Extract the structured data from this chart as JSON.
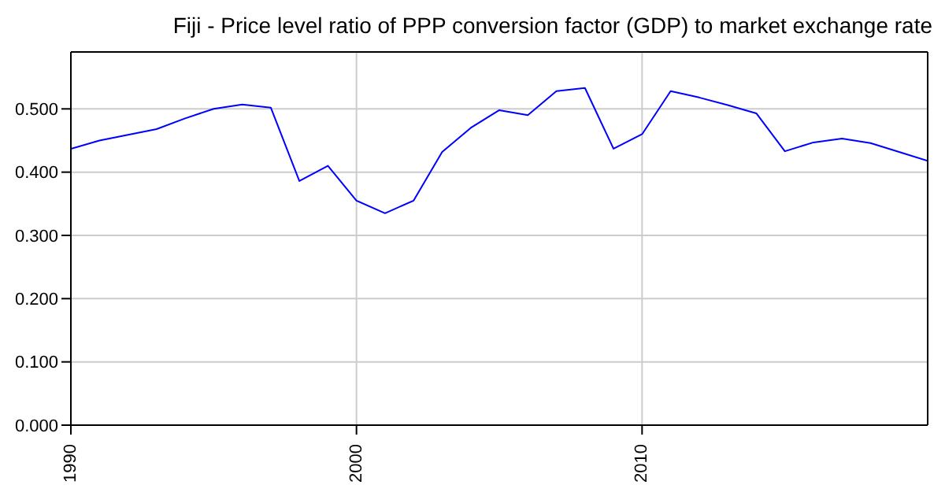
{
  "chart_data": {
    "type": "line",
    "title": "Fiji - Price level ratio of PPP conversion factor (GDP) to market exchange rate",
    "x": [
      1990,
      1991,
      1992,
      1993,
      1994,
      1995,
      1996,
      1997,
      1998,
      1999,
      2000,
      2001,
      2002,
      2003,
      2004,
      2005,
      2006,
      2007,
      2008,
      2009,
      2010,
      2011,
      2012,
      2013,
      2014,
      2015,
      2016,
      2017,
      2018,
      2019,
      2020
    ],
    "series": [
      {
        "color": "#0000ff",
        "values": [
          0.437,
          0.45,
          0.459,
          0.468,
          0.485,
          0.5,
          0.507,
          0.502,
          0.386,
          0.41,
          0.355,
          0.335,
          0.355,
          0.432,
          0.47,
          0.498,
          0.49,
          0.528,
          0.533,
          0.437,
          0.46,
          0.528,
          0.518,
          0.506,
          0.493,
          0.433,
          0.447,
          0.453,
          0.446,
          0.432,
          0.418
        ]
      }
    ],
    "xlim": [
      1990,
      2020
    ],
    "xticks": [
      1990,
      2000,
      2010
    ],
    "ylim": [
      0,
      0.59
    ],
    "yticks": [
      {
        "value": 0,
        "label": "0.000"
      },
      {
        "value": 0.1,
        "label": "0.100"
      },
      {
        "value": 0.2,
        "label": "0.200"
      },
      {
        "value": 0.3,
        "label": "0.300"
      },
      {
        "value": 0.4,
        "label": "0.400"
      },
      {
        "value": 0.5,
        "label": "0.500"
      }
    ],
    "grid": true,
    "marker": "none",
    "line_style": "solid"
  }
}
